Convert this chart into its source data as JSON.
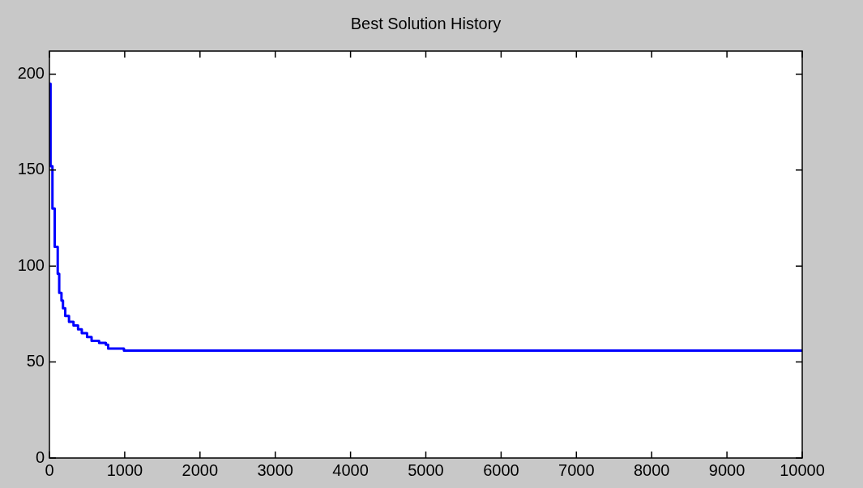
{
  "chart_data": {
    "type": "step",
    "title": "Best Solution History",
    "series": [
      {
        "color": "#0000ff",
        "x": [
          0,
          15,
          40,
          70,
          110,
          130,
          160,
          180,
          210,
          260,
          320,
          380,
          430,
          500,
          560,
          660,
          750,
          780,
          990,
          10000
        ],
        "values": [
          195,
          152,
          130,
          110,
          96,
          86,
          82,
          78,
          74,
          71,
          69,
          67,
          65,
          63,
          61,
          60,
          59,
          57,
          56,
          56
        ]
      }
    ],
    "xlim": [
      0,
      10000
    ],
    "xticks": [
      0,
      1000,
      2000,
      3000,
      4000,
      5000,
      6000,
      7000,
      8000,
      9000,
      10000
    ],
    "ylim": [
      0,
      212
    ],
    "yticks": [
      0,
      50,
      100,
      150,
      200
    ],
    "grid": false,
    "legend": false,
    "marker": "none",
    "line_style": "solid"
  }
}
